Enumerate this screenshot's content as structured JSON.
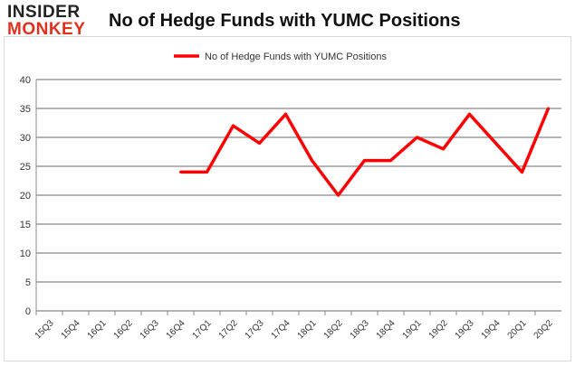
{
  "logo": {
    "line1": "INSIDER",
    "line2": "MONKEY"
  },
  "chart_data": {
    "type": "line",
    "title": "No of Hedge Funds with YUMC Positions",
    "xlabel": "",
    "ylabel": "",
    "categories": [
      "15Q3",
      "15Q4",
      "16Q1",
      "16Q2",
      "16Q3",
      "16Q4",
      "17Q1",
      "17Q2",
      "17Q3",
      "17Q4",
      "18Q1",
      "18Q2",
      "18Q3",
      "18Q4",
      "19Q1",
      "19Q2",
      "19Q3",
      "19Q4",
      "20Q1",
      "20Q2"
    ],
    "series": [
      {
        "name": "No of Hedge Funds with YUMC Positions",
        "color": "#ff0000",
        "values": [
          null,
          null,
          null,
          null,
          null,
          24,
          24,
          32,
          29,
          34,
          26,
          20,
          26,
          26,
          30,
          28,
          34,
          29,
          24,
          35
        ]
      }
    ],
    "ylim": [
      0,
      40
    ],
    "yticks": [
      0,
      5,
      10,
      15,
      20,
      25,
      30,
      35,
      40
    ],
    "grid": true,
    "legend": "top-center"
  }
}
